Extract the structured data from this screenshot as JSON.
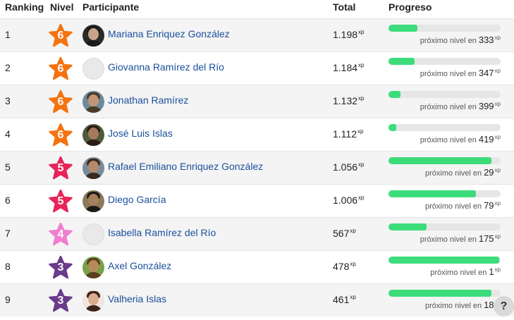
{
  "header": {
    "ranking": "Ranking",
    "level": "Nivel",
    "participant": "Participante",
    "total": "Total",
    "progress": "Progreso"
  },
  "xp_suffix": "xp",
  "next_level_label": "próximo nivel en",
  "help_button": "?",
  "level_colors": {
    "6": "#f5730f",
    "5": "#e8245a",
    "4": "#f07fd0",
    "3": "#6a3a8c"
  },
  "rows": [
    {
      "rank": "1",
      "level": "6",
      "name": "Mariana Enriquez González",
      "total": "1.198",
      "progress": 0.26,
      "remaining": "333",
      "avatar": "photo",
      "avatar_colors": {
        "skin": "#c7a48a",
        "hair": "#1a1a1a",
        "bg": "#2a2a2a"
      }
    },
    {
      "rank": "2",
      "level": "6",
      "name": "Giovanna Ramírez del Río",
      "total": "1.184",
      "progress": 0.23,
      "remaining": "347",
      "avatar": "default"
    },
    {
      "rank": "3",
      "level": "6",
      "name": "Jonathan Ramírez",
      "total": "1.132",
      "progress": 0.11,
      "remaining": "399",
      "avatar": "photo",
      "avatar_colors": {
        "skin": "#c39577",
        "hair": "#4a3a2a",
        "bg": "#6e8a9a"
      }
    },
    {
      "rank": "4",
      "level": "6",
      "name": "José Luis Islas",
      "total": "1.112",
      "progress": 0.07,
      "remaining": "419",
      "avatar": "photo",
      "avatar_colors": {
        "skin": "#a57a5a",
        "hair": "#2b1d14",
        "bg": "#4e5a3c"
      }
    },
    {
      "rank": "5",
      "level": "5",
      "name": "Rafael Emiliano Enriquez González",
      "total": "1.056",
      "progress": 0.92,
      "remaining": "29",
      "avatar": "photo",
      "avatar_colors": {
        "skin": "#b48a6c",
        "hair": "#3a2a20",
        "bg": "#7a8a9a"
      }
    },
    {
      "rank": "6",
      "level": "5",
      "name": "Diego García",
      "total": "1.006",
      "progress": 0.78,
      "remaining": "79",
      "avatar": "photo",
      "avatar_colors": {
        "skin": "#a6805e",
        "hair": "#1e1a16",
        "bg": "#8a7a5a"
      }
    },
    {
      "rank": "7",
      "level": "4",
      "name": "Isabella Ramírez del Río",
      "total": "567",
      "progress": 0.34,
      "remaining": "175",
      "avatar": "default"
    },
    {
      "rank": "8",
      "level": "3",
      "name": "Axel González",
      "total": "478",
      "progress": 0.99,
      "remaining": "1",
      "avatar": "photo",
      "avatar_colors": {
        "skin": "#b58b5e",
        "hair": "#5a3d1e",
        "bg": "#7aa04a"
      }
    },
    {
      "rank": "9",
      "level": "3",
      "name": "Valheria Islas",
      "total": "461",
      "progress": 0.92,
      "remaining": "18",
      "avatar": "photo",
      "avatar_colors": {
        "skin": "#d8ac8e",
        "hair": "#3a2418",
        "bg": "#f0e6df"
      }
    }
  ]
}
